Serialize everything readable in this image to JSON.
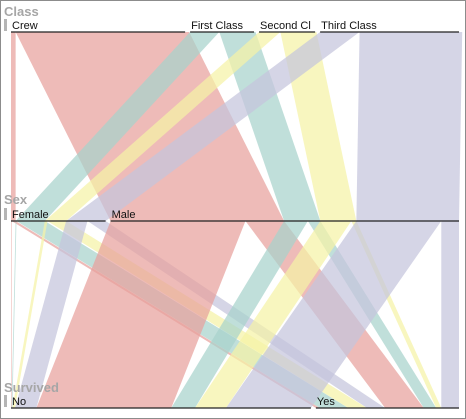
{
  "chart_data": {
    "type": "parallel_sets",
    "title": "",
    "dimensions": [
      {
        "name": "Class",
        "categories": [
          "Crew",
          "First Class",
          "Second Cl",
          "Third Class"
        ],
        "counts": [
          885,
          325,
          285,
          706
        ]
      },
      {
        "name": "Sex",
        "categories": [
          "Female",
          "Male"
        ],
        "counts": [
          470,
          1731
        ]
      },
      {
        "name": "Survived",
        "categories": [
          "No",
          "Yes"
        ],
        "counts": [
          1490,
          711
        ]
      }
    ],
    "class_colors": {
      "Crew": "#e8a19c",
      "First Class": "#a8d3cc",
      "Second Cl": "#f5f2a6",
      "Third Class": "#c5c5dd"
    },
    "flows": [
      {
        "class": "Crew",
        "sex": "Female",
        "survived": "No",
        "count": 3
      },
      {
        "class": "Crew",
        "sex": "Female",
        "survived": "Yes",
        "count": 20
      },
      {
        "class": "Crew",
        "sex": "Male",
        "survived": "No",
        "count": 670
      },
      {
        "class": "Crew",
        "sex": "Male",
        "survived": "Yes",
        "count": 192
      },
      {
        "class": "First Class",
        "sex": "Female",
        "survived": "No",
        "count": 4
      },
      {
        "class": "First Class",
        "sex": "Female",
        "survived": "Yes",
        "count": 141
      },
      {
        "class": "First Class",
        "sex": "Male",
        "survived": "No",
        "count": 118
      },
      {
        "class": "First Class",
        "sex": "Male",
        "survived": "Yes",
        "count": 62
      },
      {
        "class": "Second Cl",
        "sex": "Female",
        "survived": "No",
        "count": 13
      },
      {
        "class": "Second Cl",
        "sex": "Female",
        "survived": "Yes",
        "count": 93
      },
      {
        "class": "Second Cl",
        "sex": "Male",
        "survived": "No",
        "count": 154
      },
      {
        "class": "Second Cl",
        "sex": "Male",
        "survived": "Yes",
        "count": 25
      },
      {
        "class": "Third Class",
        "sex": "Female",
        "survived": "No",
        "count": 106
      },
      {
        "class": "Third Class",
        "sex": "Female",
        "survived": "Yes",
        "count": 90
      },
      {
        "class": "Third Class",
        "sex": "Male",
        "survived": "No",
        "count": 422
      },
      {
        "class": "Third Class",
        "sex": "Male",
        "survived": "Yes",
        "count": 88
      }
    ]
  }
}
